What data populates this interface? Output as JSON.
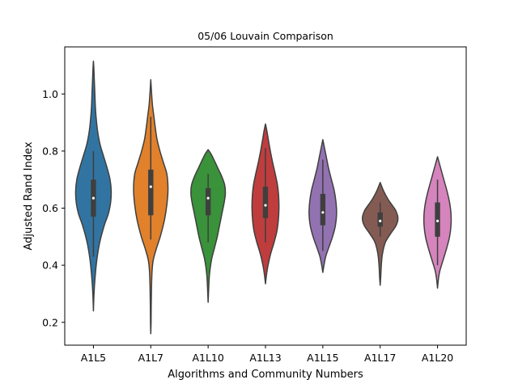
{
  "chart_data": {
    "type": "violin",
    "title": "05/06 Louvain Comparison",
    "xlabel": "Algorithms and Community Numbers",
    "ylabel": "Adjusted Rand Index",
    "ylim": [
      0.12,
      1.165
    ],
    "yticks": [
      0.2,
      0.4,
      0.6,
      0.8,
      1.0
    ],
    "ytick_labels": [
      "0.2",
      "0.4",
      "0.6",
      "0.8",
      "1.0"
    ],
    "grid": false,
    "legend": "none",
    "categories": [
      "A1L5",
      "A1L7",
      "A1L10",
      "A1L13",
      "A1L15",
      "A1L17",
      "A1L20"
    ],
    "colors": [
      "#3274a1",
      "#e1812c",
      "#3a923a",
      "#c03d3e",
      "#9372b2",
      "#845b53",
      "#d684bd"
    ],
    "series": [
      {
        "median": 0.635,
        "q1": 0.57,
        "q3": 0.7,
        "whisker_low": 0.43,
        "whisker_high": 0.8,
        "density": [
          [
            0.24,
            0.0
          ],
          [
            0.3,
            0.02
          ],
          [
            0.36,
            0.06
          ],
          [
            0.42,
            0.12
          ],
          [
            0.48,
            0.22
          ],
          [
            0.54,
            0.38
          ],
          [
            0.58,
            0.52
          ],
          [
            0.62,
            0.6
          ],
          [
            0.66,
            0.62
          ],
          [
            0.7,
            0.58
          ],
          [
            0.74,
            0.48
          ],
          [
            0.78,
            0.36
          ],
          [
            0.82,
            0.24
          ],
          [
            0.86,
            0.16
          ],
          [
            0.9,
            0.11
          ],
          [
            0.95,
            0.07
          ],
          [
            1.0,
            0.05
          ],
          [
            1.05,
            0.03
          ],
          [
            1.09,
            0.015
          ],
          [
            1.115,
            0.0
          ]
        ]
      },
      {
        "median": 0.675,
        "q1": 0.575,
        "q3": 0.735,
        "whisker_low": 0.49,
        "whisker_high": 0.92,
        "density": [
          [
            0.16,
            0.0
          ],
          [
            0.2,
            0.01
          ],
          [
            0.26,
            0.015
          ],
          [
            0.32,
            0.025
          ],
          [
            0.38,
            0.045
          ],
          [
            0.42,
            0.09
          ],
          [
            0.46,
            0.2
          ],
          [
            0.5,
            0.33
          ],
          [
            0.56,
            0.48
          ],
          [
            0.62,
            0.57
          ],
          [
            0.67,
            0.6
          ],
          [
            0.72,
            0.56
          ],
          [
            0.76,
            0.44
          ],
          [
            0.8,
            0.32
          ],
          [
            0.84,
            0.22
          ],
          [
            0.88,
            0.16
          ],
          [
            0.92,
            0.11
          ],
          [
            0.96,
            0.06
          ],
          [
            1.0,
            0.03
          ],
          [
            1.05,
            0.0
          ]
        ]
      },
      {
        "median": 0.635,
        "q1": 0.575,
        "q3": 0.67,
        "whisker_low": 0.48,
        "whisker_high": 0.72,
        "density": [
          [
            0.27,
            0.0
          ],
          [
            0.32,
            0.02
          ],
          [
            0.37,
            0.05
          ],
          [
            0.42,
            0.12
          ],
          [
            0.46,
            0.22
          ],
          [
            0.5,
            0.32
          ],
          [
            0.54,
            0.4
          ],
          [
            0.58,
            0.48
          ],
          [
            0.62,
            0.56
          ],
          [
            0.65,
            0.6
          ],
          [
            0.68,
            0.58
          ],
          [
            0.71,
            0.48
          ],
          [
            0.74,
            0.34
          ],
          [
            0.77,
            0.2
          ],
          [
            0.79,
            0.1
          ],
          [
            0.805,
            0.0
          ]
        ]
      },
      {
        "median": 0.61,
        "q1": 0.565,
        "q3": 0.675,
        "whisker_low": 0.48,
        "whisker_high": 0.81,
        "density": [
          [
            0.335,
            0.0
          ],
          [
            0.37,
            0.04
          ],
          [
            0.4,
            0.09
          ],
          [
            0.44,
            0.18
          ],
          [
            0.48,
            0.3
          ],
          [
            0.52,
            0.4
          ],
          [
            0.56,
            0.45
          ],
          [
            0.6,
            0.47
          ],
          [
            0.64,
            0.46
          ],
          [
            0.68,
            0.42
          ],
          [
            0.72,
            0.34
          ],
          [
            0.76,
            0.25
          ],
          [
            0.8,
            0.17
          ],
          [
            0.84,
            0.1
          ],
          [
            0.87,
            0.05
          ],
          [
            0.895,
            0.0
          ]
        ]
      },
      {
        "median": 0.585,
        "q1": 0.54,
        "q3": 0.65,
        "whisker_low": 0.45,
        "whisker_high": 0.77,
        "density": [
          [
            0.375,
            0.0
          ],
          [
            0.4,
            0.04
          ],
          [
            0.43,
            0.1
          ],
          [
            0.46,
            0.2
          ],
          [
            0.5,
            0.34
          ],
          [
            0.54,
            0.44
          ],
          [
            0.58,
            0.48
          ],
          [
            0.62,
            0.46
          ],
          [
            0.66,
            0.4
          ],
          [
            0.7,
            0.3
          ],
          [
            0.74,
            0.2
          ],
          [
            0.78,
            0.12
          ],
          [
            0.81,
            0.06
          ],
          [
            0.84,
            0.0
          ]
        ]
      },
      {
        "median": 0.555,
        "q1": 0.535,
        "q3": 0.585,
        "whisker_low": 0.5,
        "whisker_high": 0.62,
        "density": [
          [
            0.33,
            0.0
          ],
          [
            0.36,
            0.02
          ],
          [
            0.4,
            0.04
          ],
          [
            0.44,
            0.08
          ],
          [
            0.48,
            0.18
          ],
          [
            0.51,
            0.36
          ],
          [
            0.54,
            0.56
          ],
          [
            0.565,
            0.62
          ],
          [
            0.59,
            0.55
          ],
          [
            0.61,
            0.42
          ],
          [
            0.63,
            0.28
          ],
          [
            0.66,
            0.12
          ],
          [
            0.69,
            0.0
          ]
        ]
      },
      {
        "median": 0.555,
        "q1": 0.5,
        "q3": 0.62,
        "whisker_low": 0.4,
        "whisker_high": 0.7,
        "density": [
          [
            0.32,
            0.0
          ],
          [
            0.35,
            0.03
          ],
          [
            0.38,
            0.08
          ],
          [
            0.42,
            0.2
          ],
          [
            0.46,
            0.32
          ],
          [
            0.5,
            0.42
          ],
          [
            0.54,
            0.47
          ],
          [
            0.58,
            0.47
          ],
          [
            0.62,
            0.42
          ],
          [
            0.66,
            0.33
          ],
          [
            0.7,
            0.22
          ],
          [
            0.74,
            0.11
          ],
          [
            0.78,
            0.0
          ]
        ]
      }
    ]
  }
}
